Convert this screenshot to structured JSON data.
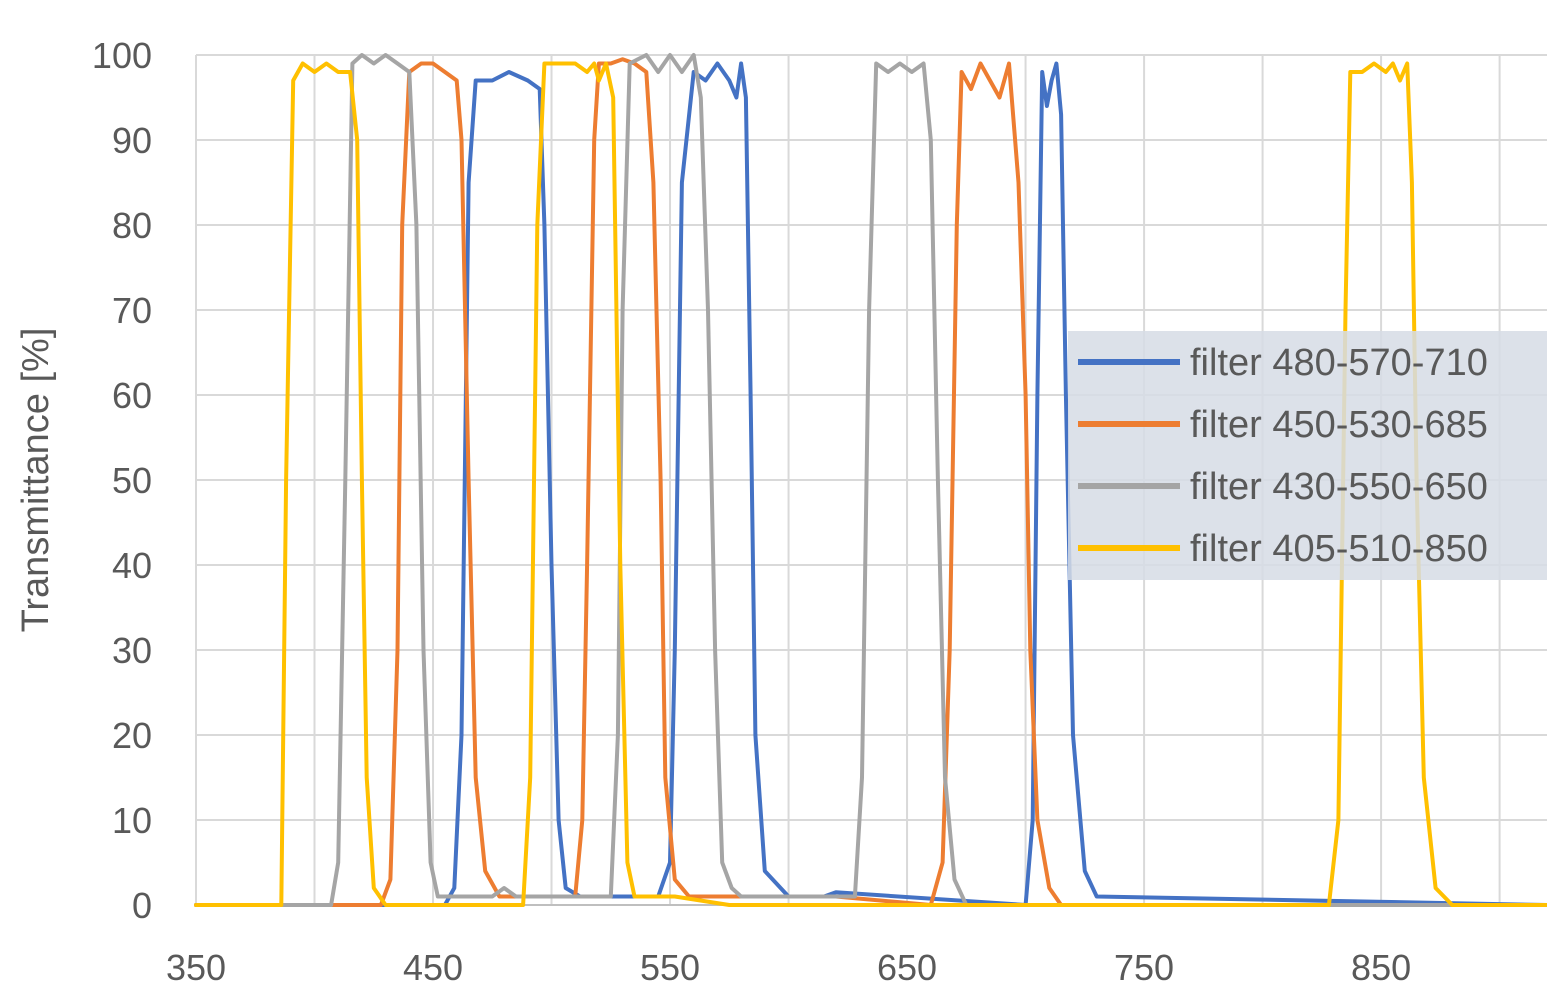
{
  "chart_data": {
    "type": "line",
    "title": "",
    "xlabel": "",
    "ylabel": "Transmittance [%]",
    "xlim": [
      350,
      920
    ],
    "ylim": [
      0,
      100
    ],
    "x_ticks": [
      "350",
      "450",
      "550",
      "650",
      "750",
      "850"
    ],
    "y_ticks": [
      "0",
      "10",
      "20",
      "30",
      "40",
      "50",
      "60",
      "70",
      "80",
      "90",
      "100"
    ],
    "grid": true,
    "legend_position": "right",
    "series": [
      {
        "name": "filter 480-570-710",
        "color": "#4472C4",
        "points": [
          [
            350,
            0
          ],
          [
            455,
            0
          ],
          [
            459,
            2
          ],
          [
            462,
            20
          ],
          [
            465,
            85
          ],
          [
            468,
            97
          ],
          [
            475,
            97
          ],
          [
            482,
            98
          ],
          [
            490,
            97
          ],
          [
            495,
            96
          ],
          [
            497,
            80
          ],
          [
            500,
            40
          ],
          [
            503,
            10
          ],
          [
            506,
            2
          ],
          [
            512,
            1
          ],
          [
            545,
            1
          ],
          [
            550,
            5
          ],
          [
            552,
            30
          ],
          [
            555,
            85
          ],
          [
            560,
            98
          ],
          [
            565,
            97
          ],
          [
            570,
            99
          ],
          [
            575,
            97
          ],
          [
            578,
            95
          ],
          [
            580,
            99
          ],
          [
            582,
            95
          ],
          [
            584,
            60
          ],
          [
            586,
            20
          ],
          [
            590,
            4
          ],
          [
            600,
            1
          ],
          [
            615,
            1
          ],
          [
            620,
            1.5
          ],
          [
            700,
            0
          ],
          [
            703,
            10
          ],
          [
            705,
            60
          ],
          [
            707,
            98
          ],
          [
            709,
            94
          ],
          [
            711,
            97
          ],
          [
            713,
            99
          ],
          [
            715,
            93
          ],
          [
            717,
            60
          ],
          [
            720,
            20
          ],
          [
            725,
            4
          ],
          [
            730,
            1
          ],
          [
            920,
            0
          ]
        ]
      },
      {
        "name": "filter 450-530-685",
        "color": "#ED7D31",
        "points": [
          [
            350,
            0
          ],
          [
            428,
            0
          ],
          [
            432,
            3
          ],
          [
            435,
            30
          ],
          [
            437,
            80
          ],
          [
            440,
            98
          ],
          [
            445,
            99
          ],
          [
            450,
            99
          ],
          [
            455,
            98
          ],
          [
            460,
            97
          ],
          [
            462,
            90
          ],
          [
            465,
            50
          ],
          [
            468,
            15
          ],
          [
            472,
            4
          ],
          [
            478,
            1
          ],
          [
            510,
            1
          ],
          [
            513,
            10
          ],
          [
            515,
            40
          ],
          [
            518,
            90
          ],
          [
            520,
            99
          ],
          [
            525,
            99
          ],
          [
            530,
            99.5
          ],
          [
            535,
            99
          ],
          [
            540,
            98
          ],
          [
            543,
            85
          ],
          [
            546,
            50
          ],
          [
            548,
            15
          ],
          [
            552,
            3
          ],
          [
            558,
            1
          ],
          [
            620,
            1
          ],
          [
            660,
            0
          ],
          [
            665,
            5
          ],
          [
            668,
            30
          ],
          [
            671,
            80
          ],
          [
            673,
            98
          ],
          [
            677,
            96
          ],
          [
            681,
            99
          ],
          [
            685,
            97
          ],
          [
            689,
            95
          ],
          [
            693,
            99
          ],
          [
            697,
            85
          ],
          [
            700,
            60
          ],
          [
            702,
            30
          ],
          [
            705,
            10
          ],
          [
            710,
            2
          ],
          [
            715,
            0
          ],
          [
            920,
            0
          ]
        ]
      },
      {
        "name": "filter 430-550-650",
        "color": "#A5A5A5",
        "points": [
          [
            350,
            0
          ],
          [
            407,
            0
          ],
          [
            410,
            5
          ],
          [
            413,
            50
          ],
          [
            416,
            99
          ],
          [
            420,
            100
          ],
          [
            425,
            99
          ],
          [
            430,
            100
          ],
          [
            435,
            99
          ],
          [
            440,
            98
          ],
          [
            443,
            80
          ],
          [
            446,
            30
          ],
          [
            449,
            5
          ],
          [
            452,
            1
          ],
          [
            475,
            1
          ],
          [
            480,
            2
          ],
          [
            485,
            1
          ],
          [
            525,
            1
          ],
          [
            528,
            20
          ],
          [
            530,
            70
          ],
          [
            533,
            99
          ],
          [
            540,
            100
          ],
          [
            545,
            98
          ],
          [
            550,
            100
          ],
          [
            555,
            98
          ],
          [
            560,
            100
          ],
          [
            563,
            95
          ],
          [
            566,
            70
          ],
          [
            569,
            30
          ],
          [
            572,
            5
          ],
          [
            576,
            2
          ],
          [
            580,
            1
          ],
          [
            628,
            1
          ],
          [
            631,
            15
          ],
          [
            634,
            70
          ],
          [
            637,
            99
          ],
          [
            642,
            98
          ],
          [
            647,
            99
          ],
          [
            652,
            98
          ],
          [
            657,
            99
          ],
          [
            660,
            90
          ],
          [
            663,
            50
          ],
          [
            666,
            15
          ],
          [
            670,
            3
          ],
          [
            675,
            0
          ],
          [
            920,
            0
          ]
        ]
      },
      {
        "name": "filter 405-510-850",
        "color": "#FFC000",
        "points": [
          [
            350,
            0
          ],
          [
            386,
            0
          ],
          [
            388,
            50
          ],
          [
            391,
            97
          ],
          [
            395,
            99
          ],
          [
            400,
            98
          ],
          [
            405,
            99
          ],
          [
            410,
            98
          ],
          [
            415,
            98
          ],
          [
            418,
            90
          ],
          [
            420,
            50
          ],
          [
            422,
            15
          ],
          [
            425,
            2
          ],
          [
            430,
            0
          ],
          [
            488,
            0
          ],
          [
            491,
            15
          ],
          [
            494,
            80
          ],
          [
            497,
            99
          ],
          [
            503,
            99
          ],
          [
            510,
            99
          ],
          [
            515,
            98
          ],
          [
            518,
            99
          ],
          [
            520,
            97
          ],
          [
            523,
            99
          ],
          [
            526,
            95
          ],
          [
            529,
            40
          ],
          [
            532,
            5
          ],
          [
            535,
            1
          ],
          [
            552,
            1
          ],
          [
            575,
            0
          ],
          [
            828,
            0
          ],
          [
            832,
            10
          ],
          [
            835,
            70
          ],
          [
            837,
            98
          ],
          [
            842,
            98
          ],
          [
            847,
            99
          ],
          [
            852,
            98
          ],
          [
            855,
            99
          ],
          [
            858,
            97
          ],
          [
            861,
            99
          ],
          [
            863,
            85
          ],
          [
            865,
            50
          ],
          [
            868,
            15
          ],
          [
            873,
            2
          ],
          [
            880,
            0
          ],
          [
            920,
            0
          ]
        ]
      }
    ]
  }
}
